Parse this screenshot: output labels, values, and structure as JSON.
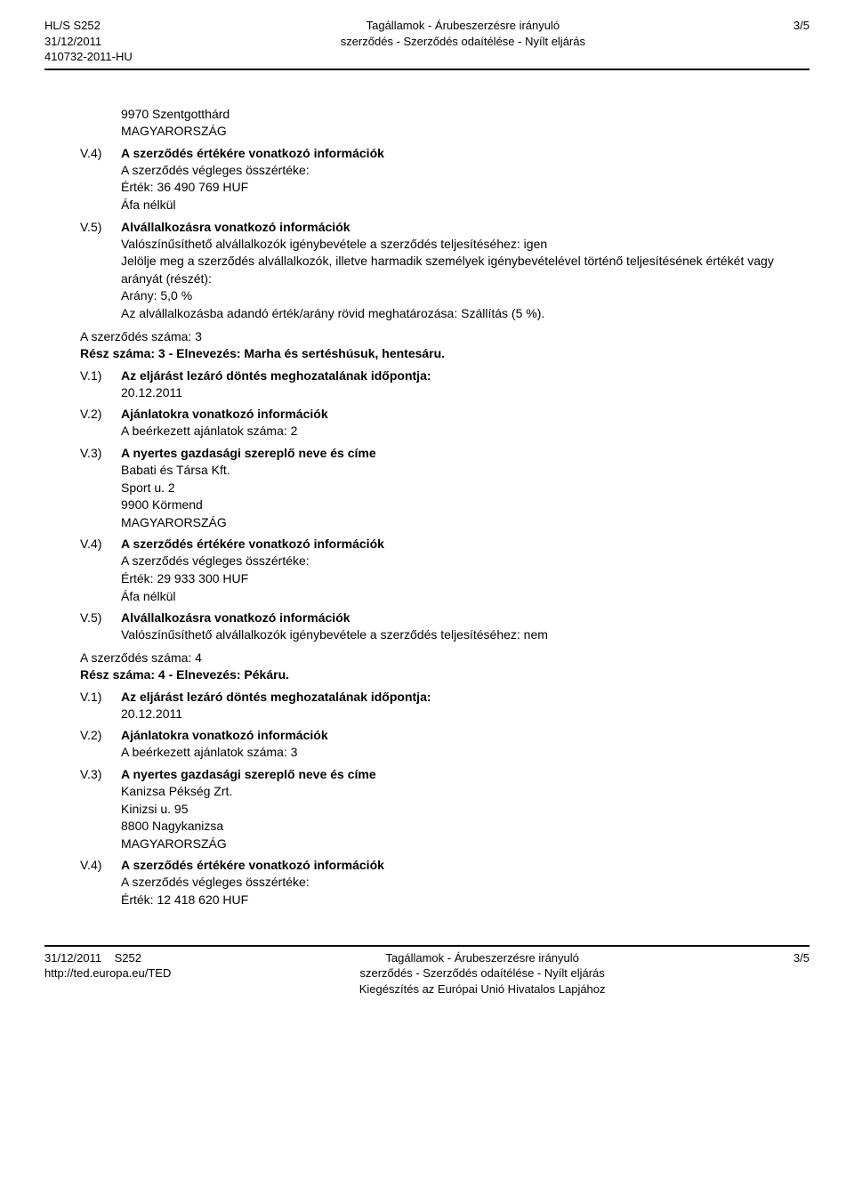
{
  "header": {
    "left_line1": "HL/S S252",
    "left_line2": "31/12/2011",
    "left_line3": "410732-2011-HU",
    "center_line1": "Tagállamok - Árubeszerzésre irányuló",
    "center_line2": "szerződés - Szerződés odaítélése - Nyílt eljárás",
    "right": "3/5"
  },
  "body": {
    "pre_city": "9970 Szentgotthárd",
    "pre_country": "MAGYARORSZÁG",
    "v4a": {
      "label": "V.4)",
      "title": "A szerződés értékére vonatkozó információk",
      "line1": "A szerződés végleges összértéke:",
      "line2": "Érték: 36 490 769 HUF",
      "line3": "Áfa nélkül"
    },
    "v5a": {
      "label": "V.5)",
      "title": "Alvállalkozásra vonatkozó információk",
      "line1": "Valószínűsíthető alvállalkozók igénybevétele a szerződés teljesítéséhez: igen",
      "line2": "Jelölje meg a szerződés alvállalkozók, illetve harmadik személyek igénybevételével történő teljesítésének értékét vagy arányát (részét):",
      "line3": "Arány: 5,0 %",
      "line4": "Az alvállalkozásba adandó érték/arány rövid meghatározása: Szállítás (5 %)."
    },
    "contract3": {
      "num": "A szerződés száma: 3",
      "part": "Rész száma: 3 - Elnevezés: Marha és sertéshúsuk, hentesáru.",
      "v1": {
        "label": "V.1)",
        "title": "Az eljárást lezáró döntés meghozatalának időpontja:",
        "date": "20.12.2011"
      },
      "v2": {
        "label": "V.2)",
        "title": "Ajánlatokra vonatkozó információk",
        "line1": "A beérkezett ajánlatok száma: 2"
      },
      "v3": {
        "label": "V.3)",
        "title": "A nyertes gazdasági szereplő neve és címe",
        "line1": "Babati és Társa Kft.",
        "line2": "Sport u. 2",
        "line3": "9900 Körmend",
        "line4": "MAGYARORSZÁG"
      },
      "v4": {
        "label": "V.4)",
        "title": "A szerződés értékére vonatkozó információk",
        "line1": "A szerződés végleges összértéke:",
        "line2": "Érték: 29 933 300 HUF",
        "line3": "Áfa nélkül"
      },
      "v5": {
        "label": "V.5)",
        "title": "Alvállalkozásra vonatkozó információk",
        "line1": "Valószínűsíthető alvállalkozók igénybevétele a szerződés teljesítéséhez: nem"
      }
    },
    "contract4": {
      "num": "A szerződés száma: 4",
      "part": "Rész száma: 4 - Elnevezés: Pékáru.",
      "v1": {
        "label": "V.1)",
        "title": "Az eljárást lezáró döntés meghozatalának időpontja:",
        "date": "20.12.2011"
      },
      "v2": {
        "label": "V.2)",
        "title": "Ajánlatokra vonatkozó információk",
        "line1": "A beérkezett ajánlatok száma: 3"
      },
      "v3": {
        "label": "V.3)",
        "title": "A nyertes gazdasági szereplő neve és címe",
        "line1": "Kanizsa Pékség Zrt.",
        "line2": "Kinizsi u. 95",
        "line3": "8800 Nagykanizsa",
        "line4": "MAGYARORSZÁG"
      },
      "v4": {
        "label": "V.4)",
        "title": "A szerződés értékére vonatkozó információk",
        "line1": "A szerződés végleges összértéke:",
        "line2": "Érték: 12 418 620 HUF"
      }
    }
  },
  "footer": {
    "left_line1": "31/12/2011",
    "left_s": "S252",
    "left_line2": "http://ted.europa.eu/TED",
    "center_line1": "Tagállamok - Árubeszerzésre irányuló",
    "center_line2": "szerződés - Szerződés odaítélése - Nyílt eljárás",
    "center_line3": "Kiegészítés az Európai Unió Hivatalos Lapjához",
    "right": "3/5"
  }
}
